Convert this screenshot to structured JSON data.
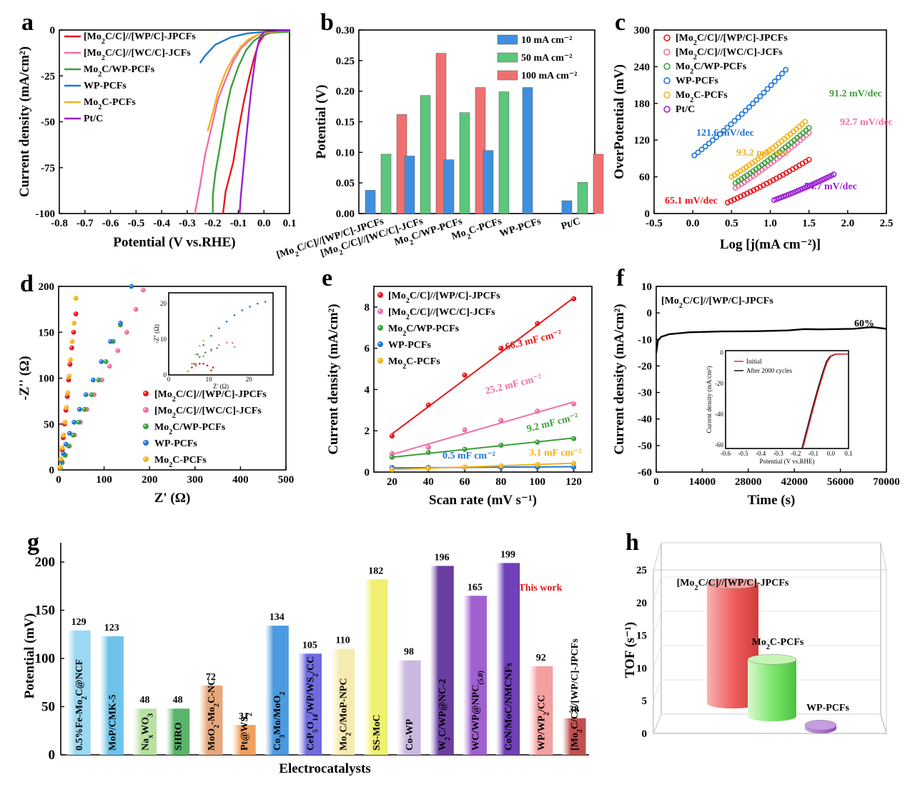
{
  "panels": {
    "a": {
      "letter": "a"
    },
    "b": {
      "letter": "b"
    },
    "c": {
      "letter": "c"
    },
    "d": {
      "letter": "d"
    },
    "e": {
      "letter": "e"
    },
    "f": {
      "letter": "f"
    },
    "g": {
      "letter": "g"
    },
    "h": {
      "letter": "h"
    }
  },
  "colors": {
    "red": "#e8171d",
    "pink": "#ef6fa6",
    "green": "#3ca03a",
    "blue": "#1f77d4",
    "orange": "#f5b21a",
    "purple": "#9a1fd1",
    "black": "#000000"
  },
  "chart_data": [
    {
      "id": "a",
      "type": "line",
      "xlabel": "Potential (V vs.RHE)",
      "ylabel": "Current density (mA/cm²)",
      "xlim": [
        -0.8,
        0.1
      ],
      "ylim": [
        -100,
        0
      ],
      "xticks": [
        "-0.8",
        "-0.7",
        "-0.6",
        "-0.5",
        "-0.4",
        "-0.3",
        "-0.2",
        "-0.1",
        "0.0",
        "0.1"
      ],
      "yticks": [
        "0",
        "-25",
        "-50",
        "-75",
        "-100"
      ],
      "series": [
        {
          "name": "[Mo2C/C]//[WP/C]-JPCFs",
          "color": "red",
          "x": [
            -0.16,
            -0.15,
            -0.12,
            -0.1,
            -0.08,
            -0.06,
            -0.04,
            -0.02,
            0.0,
            0.02,
            0.05,
            0.1
          ],
          "y": [
            -100,
            -88,
            -72,
            -55,
            -40,
            -27,
            -16,
            -7,
            -3,
            -1.5,
            -1,
            -0.8
          ]
        },
        {
          "name": "[Mo2C/C]//[WC/C]-JCFs",
          "color": "pink",
          "x": [
            -0.27,
            -0.25,
            -0.23,
            -0.2,
            -0.18,
            -0.15,
            -0.12,
            -0.09,
            -0.06,
            -0.03,
            0.0,
            0.05,
            0.1
          ],
          "y": [
            -100,
            -85,
            -68,
            -50,
            -38,
            -27,
            -17,
            -10,
            -6,
            -3,
            -1.5,
            -0.8,
            -0.5
          ]
        },
        {
          "name": "Mo2C/WP-PCFs",
          "color": "green",
          "x": [
            -0.2,
            -0.2,
            -0.19,
            -0.17,
            -0.15,
            -0.13,
            -0.1,
            -0.07,
            -0.04,
            -0.01,
            0.03,
            0.1
          ],
          "y": [
            -100,
            -90,
            -78,
            -62,
            -45,
            -32,
            -20,
            -11,
            -6,
            -3,
            -1.5,
            -1
          ]
        },
        {
          "name": "WP-PCFs",
          "color": "blue",
          "x": [
            -0.25,
            -0.23,
            -0.21,
            -0.19,
            -0.16,
            -0.13,
            -0.1,
            -0.07,
            -0.04,
            0.0,
            0.05,
            0.1
          ],
          "y": [
            -18,
            -14,
            -11,
            -8,
            -6,
            -4,
            -3,
            -2,
            -1.5,
            -1,
            -0.7,
            -0.5
          ]
        },
        {
          "name": "Mo2C-PCFs",
          "color": "orange",
          "x": [
            -0.22,
            -0.2,
            -0.18,
            -0.15,
            -0.12,
            -0.09,
            -0.06,
            -0.03,
            0.0,
            0.05,
            0.1
          ],
          "y": [
            -55,
            -45,
            -34,
            -23,
            -15,
            -9,
            -5,
            -3,
            -1.5,
            -0.8,
            -0.5
          ]
        },
        {
          "name": "Pt/C",
          "color": "purple",
          "x": [
            -0.095,
            -0.09,
            -0.08,
            -0.07,
            -0.06,
            -0.05,
            -0.04,
            -0.03,
            -0.02,
            -0.01,
            0.0,
            0.05,
            0.1
          ],
          "y": [
            -100,
            -90,
            -75,
            -60,
            -46,
            -33,
            -22,
            -12,
            -6,
            -3,
            -1,
            -0.5,
            -0.3
          ]
        }
      ]
    },
    {
      "id": "b",
      "type": "bar",
      "ylabel": "Potential (V)",
      "ylim": [
        0,
        0.3
      ],
      "yticks": [
        "0.00",
        "0.05",
        "0.10",
        "0.15",
        "0.20",
        "0.25",
        "0.30"
      ],
      "categories": [
        "[Mo2C/C]//[WP/C]-JPCFs",
        "[Mo2C/C]//[WC/C]-JCFs",
        "Mo2C/WP-PCFs",
        "Mo2C-PCFs",
        "WP-PCFs",
        "Pt/C"
      ],
      "series": [
        {
          "name": "10 mA cm⁻²",
          "color": "#3f8fe0",
          "values": [
            0.038,
            0.094,
            0.088,
            0.103,
            0.206,
            0.021
          ]
        },
        {
          "name": "50 mA cm⁻²",
          "color": "#5cc77c",
          "values": [
            0.097,
            0.193,
            0.165,
            0.199,
            null,
            0.051
          ]
        },
        {
          "name": "100 mA cm⁻²",
          "color": "#f07070",
          "values": [
            0.162,
            0.262,
            0.206,
            null,
            null,
            0.097
          ]
        }
      ]
    },
    {
      "id": "c",
      "type": "scatter",
      "xlabel": "Log [j(mA cm⁻²)]",
      "ylabel": "OverPotential (mV)",
      "xlim": [
        -0.5,
        2.5
      ],
      "ylim": [
        0,
        300
      ],
      "xticks": [
        "-0.5",
        "0.0",
        "0.5",
        "1.0",
        "1.5",
        "2.0",
        "2.5"
      ],
      "yticks": [
        "0",
        "60",
        "120",
        "180",
        "240",
        "300"
      ],
      "series": [
        {
          "name": "[Mo2C/C]//[WP/C]-JPCFs",
          "color": "red",
          "x0": 0.45,
          "x1": 1.5,
          "y0": 18,
          "y1": 88,
          "slope_label": "65.1 mV/dec"
        },
        {
          "name": "[Mo2C/C]//[WC/C]-JCFs",
          "color": "pink",
          "x0": 0.55,
          "x1": 1.5,
          "y0": 42,
          "y1": 132,
          "slope_label": "92.7 mV/dec"
        },
        {
          "name": "Mo2C/WP-PCFs",
          "color": "green",
          "x0": 0.55,
          "x1": 1.5,
          "y0": 50,
          "y1": 140,
          "slope_label": "91.2 mV/dec"
        },
        {
          "name": "WP-PCFs",
          "color": "blue",
          "x0": 0.02,
          "x1": 1.2,
          "y0": 95,
          "y1": 235,
          "slope_label": "121.6 mV/dec"
        },
        {
          "name": "Mo2C-PCFs",
          "color": "orange",
          "x0": 0.5,
          "x1": 1.45,
          "y0": 60,
          "y1": 150,
          "slope_label": "93.2 mV/dec"
        },
        {
          "name": "Pt/C",
          "color": "purple",
          "x0": 1.05,
          "x1": 1.82,
          "y0": 22,
          "y1": 64,
          "slope_label": "54.7 mV/dec"
        }
      ]
    },
    {
      "id": "d",
      "type": "scatter",
      "xlabel": "Z' (Ω)",
      "ylabel": "-Z'' (Ω)",
      "xlim": [
        0,
        500
      ],
      "ylim": [
        0,
        200
      ],
      "xticks": [
        "0",
        "100",
        "200",
        "300",
        "400",
        "500"
      ],
      "yticks": [
        "0",
        "50",
        "100",
        "150",
        "200"
      ],
      "inset": {
        "xlabel": "Z' (Ω)",
        "ylabel": "-Z'' (Ω)",
        "xticks": [
          "0",
          "10",
          "20"
        ],
        "yticks": [
          "0",
          "10",
          "20"
        ]
      },
      "series": [
        {
          "name": "[Mo2C/C]//[WP/C]-JPCFs",
          "color": "red",
          "x": [
            3,
            5,
            8,
            10,
            13,
            16,
            19,
            22,
            25,
            29,
            33,
            38
          ],
          "y": [
            2,
            10,
            22,
            35,
            50,
            65,
            80,
            98,
            115,
            133,
            150,
            170
          ]
        },
        {
          "name": "[Mo2C/C]//[WC/C]-JCFs",
          "color": "pink",
          "x": [
            4,
            8,
            15,
            24,
            35,
            48,
            62,
            78,
            95,
            112,
            130,
            150,
            170,
            186
          ],
          "y": [
            2,
            8,
            16,
            26,
            38,
            52,
            66,
            82,
            98,
            113,
            130,
            150,
            175,
            196
          ]
        },
        {
          "name": "Mo2C/WP-PCFs",
          "color": "green",
          "x": [
            4,
            8,
            14,
            22,
            32,
            44,
            57,
            72,
            88,
            104,
            120,
            136
          ],
          "y": [
            2,
            8,
            16,
            26,
            38,
            52,
            66,
            82,
            98,
            118,
            140,
            158
          ]
        },
        {
          "name": "WP-PCFs",
          "color": "blue",
          "x": [
            3,
            6,
            10,
            16,
            24,
            34,
            46,
            60,
            76,
            94,
            114,
            136,
            160
          ],
          "y": [
            3,
            10,
            18,
            28,
            40,
            52,
            66,
            82,
            98,
            118,
            140,
            160,
            200
          ]
        },
        {
          "name": "Mo2C-PCFs",
          "color": "orange",
          "x": [
            3,
            5,
            8,
            11,
            14,
            17,
            20,
            23,
            26,
            30,
            34,
            38
          ],
          "y": [
            3,
            12,
            24,
            38,
            52,
            68,
            84,
            102,
            120,
            140,
            160,
            187
          ]
        }
      ]
    },
    {
      "id": "e",
      "type": "scatter",
      "xlabel": "Scan rate (mV s⁻¹)",
      "ylabel": "Current density (mA/cm²)",
      "xlim": [
        10,
        130
      ],
      "ylim": [
        0,
        9
      ],
      "xticks": [
        "20",
        "40",
        "60",
        "80",
        "100",
        "120"
      ],
      "yticks": [
        "0",
        "2",
        "4",
        "6",
        "8"
      ],
      "series": [
        {
          "name": "[Mo2C/C]//[WP/C]-JPCFs",
          "color": "red",
          "x": [
            20,
            40,
            60,
            80,
            100,
            120
          ],
          "y": [
            1.75,
            3.25,
            4.7,
            6.0,
            7.2,
            8.4
          ],
          "fit": [
            1.85,
            8.45
          ],
          "cap_label": "66.3 mF cm⁻²"
        },
        {
          "name": "[Mo2C/C]//[WC/C]-JCFs",
          "color": "pink",
          "x": [
            20,
            40,
            60,
            80,
            100,
            120
          ],
          "y": [
            0.9,
            1.2,
            2.05,
            2.5,
            2.95,
            3.3
          ],
          "fit": [
            0.85,
            3.4
          ],
          "cap_label": "25.2 mF cm⁻²"
        },
        {
          "name": "Mo2C/WP-PCFs",
          "color": "green",
          "x": [
            20,
            40,
            60,
            80,
            100,
            120
          ],
          "y": [
            0.72,
            0.95,
            1.1,
            1.3,
            1.45,
            1.62
          ],
          "fit": [
            0.72,
            1.65
          ],
          "cap_label": "9.2 mF cm⁻²"
        },
        {
          "name": "WP-PCFs",
          "color": "blue",
          "x": [
            20,
            40,
            60,
            80,
            100,
            120
          ],
          "y": [
            0.22,
            0.22,
            0.23,
            0.23,
            0.24,
            0.24
          ],
          "fit": [
            0.2,
            0.26
          ],
          "cap_label": "0.5 mF cm⁻²"
        },
        {
          "name": "Mo2C-PCFs",
          "color": "orange",
          "x": [
            20,
            40,
            60,
            80,
            100,
            120
          ],
          "y": [
            0.12,
            0.18,
            0.24,
            0.3,
            0.36,
            0.42
          ],
          "fit": [
            0.12,
            0.43
          ],
          "cap_label": "3.1 mF cm⁻²"
        }
      ]
    },
    {
      "id": "f",
      "type": "line",
      "title": "[Mo2C/C]//[WP/C]-JPCFs",
      "xlabel": "Time (s)",
      "ylabel": "Current density (mA/cm²)",
      "xlim": [
        0,
        70000
      ],
      "ylim": [
        -60,
        10
      ],
      "xticks": [
        "0",
        "14000",
        "28000",
        "42000",
        "56000",
        "70000"
      ],
      "yticks": [
        "10",
        "0",
        "-10",
        "-20",
        "-30",
        "-40",
        "-50",
        "-60"
      ],
      "annotation": "60%",
      "x": [
        0,
        500,
        1500,
        4000,
        10000,
        20000,
        30000,
        40000,
        45000,
        50000,
        60000,
        64000,
        66000,
        70000
      ],
      "y": [
        -15,
        -10.5,
        -9,
        -8,
        -7.3,
        -7,
        -6.9,
        -6.6,
        -6.1,
        -6.2,
        -6.0,
        -5.5,
        -5.4,
        -6.0
      ],
      "inset": {
        "xlabel": "Potential (V vs.RHE)",
        "ylabel": "Current density (mA/cm²)",
        "xticks": [
          "-0.6",
          "-0.5",
          "-0.4",
          "-0.3",
          "-0.2",
          "-0.1",
          "0.0",
          "0.1"
        ],
        "yticks": [
          "0",
          "-20",
          "-40",
          "-60"
        ],
        "legend": [
          "Initial",
          "After 2000 cycles"
        ]
      }
    },
    {
      "id": "g",
      "type": "bar",
      "xlabel": "Electrocatalysts",
      "ylabel": "Potential (mV)",
      "ylim": [
        0,
        220
      ],
      "yticks": [
        "0",
        "50",
        "100",
        "150",
        "200"
      ],
      "highlight": "This work",
      "categories": [
        "0.5%Fe-Mo2C@NCF",
        "MoP/CMK-5",
        "NaxWO3",
        "SHRO",
        "MoO2-Mo2C-NC",
        "Pt@WS2",
        "Co3Mo/MoO2",
        "CeP5O14/WP/WS2/CC",
        "Mo2C/MoP-NPC",
        "SS-MoC",
        "Co-WP",
        "W2C/WP@NC-2",
        "WC/WP@NPC(5.0)",
        "CoN/MoC/NMCNFs",
        "WP/WP2/CC",
        "[Mo2C/C]//[WP/C]-JPCFs"
      ],
      "values": [
        129,
        123,
        48,
        48,
        72,
        31,
        134,
        105,
        110,
        182,
        98,
        196,
        165,
        199,
        92,
        38
      ],
      "value_labels": [
        "129",
        "123",
        "48",
        "48",
        "72",
        "31",
        "134",
        "105",
        "110",
        "182",
        "98",
        "196",
        "165",
        "199",
        "92",
        "38"
      ]
    },
    {
      "id": "h",
      "type": "bar",
      "ylabel": "TOF (s⁻¹)",
      "ylim": [
        0,
        25
      ],
      "zticks": [
        "0",
        "5",
        "10",
        "15",
        "20",
        "25"
      ],
      "categories": [
        "[Mo2C/C]//[WP/C]-JPCFs",
        "Mo2C-PCFs",
        "WP-PCFs"
      ],
      "values": [
        17.5,
        8.3,
        0.5
      ]
    }
  ]
}
